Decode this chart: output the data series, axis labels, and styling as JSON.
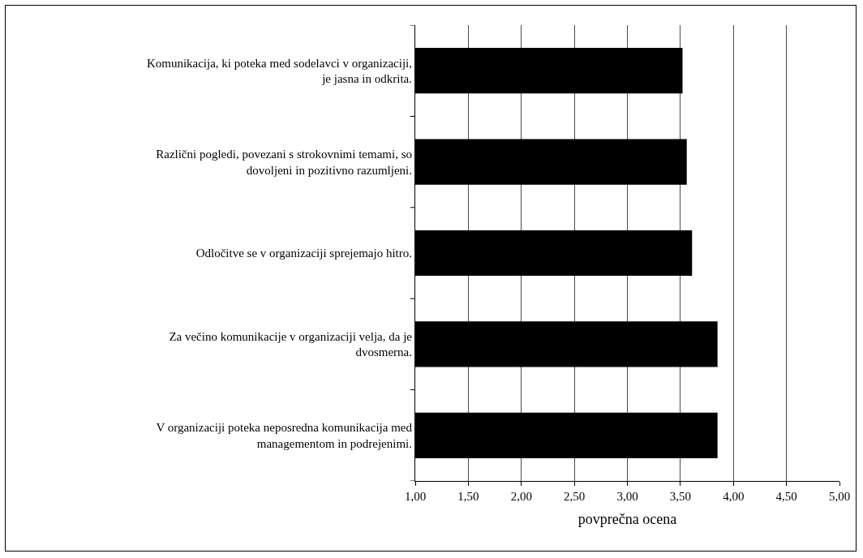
{
  "chart_data": {
    "type": "bar",
    "orientation": "horizontal",
    "xlabel": "povprečna ocena",
    "categories": [
      "Komunikacija, ki poteka med sodelavci v organizaciji, je jasna in odkrita.",
      "Različni pogledi, povezani s strokovnimi temami, so dovoljeni in pozitivno razumljeni.",
      "Odločitve se v organizaciji sprejemajo hitro.",
      "Za večino komunikacije v organizaciji velja, da je dvosmerna.",
      "V organizaciji poteka neposredna komunikacija med managementom in podrejenimi."
    ],
    "values": [
      3.52,
      3.56,
      3.61,
      3.85,
      3.85
    ],
    "color": "#000000",
    "xlim": [
      1,
      5
    ],
    "xticks": [
      {
        "value": 1,
        "label": "1,00"
      },
      {
        "value": 1.5,
        "label": "1,50"
      },
      {
        "value": 2,
        "label": "2,00"
      },
      {
        "value": 2.5,
        "label": "2,50"
      },
      {
        "value": 3,
        "label": "3,00"
      },
      {
        "value": 3.5,
        "label": "3,50"
      },
      {
        "value": 4,
        "label": "4,00"
      },
      {
        "value": 4.5,
        "label": "4,50"
      },
      {
        "value": 5,
        "label": "5,00"
      }
    ],
    "grid": "x"
  }
}
